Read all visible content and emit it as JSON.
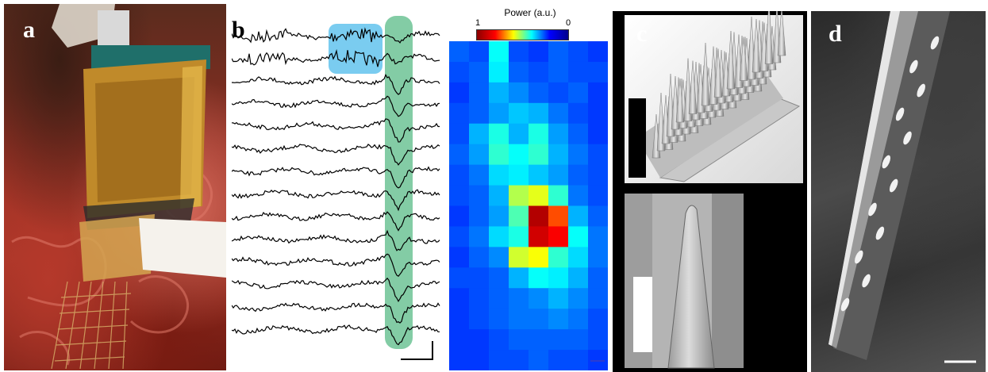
{
  "figure": {
    "panel_labels": {
      "a": "a",
      "b": "b",
      "c": "c",
      "d": "d"
    },
    "heatmap": {
      "colorbar_title": "Power (a.u.)",
      "colorbar_min_label": "1",
      "colorbar_max_label": "0",
      "colormap": [
        "#8b0000",
        "#ff0000",
        "#ffff00",
        "#00ffff",
        "#0000ff",
        "#00008b"
      ],
      "rows": 16,
      "cols": 8,
      "values": [
        [
          0.22,
          0.2,
          0.38,
          0.2,
          0.18,
          0.22,
          0.2,
          0.18
        ],
        [
          0.2,
          0.22,
          0.36,
          0.22,
          0.2,
          0.22,
          0.2,
          0.2
        ],
        [
          0.18,
          0.22,
          0.3,
          0.26,
          0.22,
          0.2,
          0.22,
          0.18
        ],
        [
          0.2,
          0.22,
          0.28,
          0.32,
          0.3,
          0.24,
          0.2,
          0.18
        ],
        [
          0.2,
          0.3,
          0.4,
          0.3,
          0.4,
          0.28,
          0.22,
          0.18
        ],
        [
          0.22,
          0.28,
          0.42,
          0.38,
          0.42,
          0.3,
          0.24,
          0.2
        ],
        [
          0.2,
          0.24,
          0.34,
          0.36,
          0.32,
          0.28,
          0.22,
          0.2
        ],
        [
          0.2,
          0.22,
          0.3,
          0.55,
          0.6,
          0.42,
          0.24,
          0.2
        ],
        [
          0.18,
          0.22,
          0.28,
          0.45,
          0.95,
          0.8,
          0.3,
          0.22
        ],
        [
          0.2,
          0.24,
          0.34,
          0.4,
          0.92,
          0.88,
          0.38,
          0.24
        ],
        [
          0.18,
          0.22,
          0.26,
          0.58,
          0.62,
          0.42,
          0.34,
          0.24
        ],
        [
          0.2,
          0.2,
          0.22,
          0.3,
          0.38,
          0.36,
          0.3,
          0.22
        ],
        [
          0.18,
          0.2,
          0.22,
          0.24,
          0.26,
          0.3,
          0.26,
          0.22
        ],
        [
          0.18,
          0.2,
          0.22,
          0.24,
          0.24,
          0.26,
          0.24,
          0.2
        ],
        [
          0.18,
          0.18,
          0.2,
          0.22,
          0.22,
          0.22,
          0.22,
          0.2
        ],
        [
          0.18,
          0.18,
          0.2,
          0.2,
          0.22,
          0.2,
          0.2,
          0.18
        ]
      ]
    },
    "traces": {
      "count": 14
    },
    "highlight_colors": {
      "blue": "#6cc6ee",
      "green": "#76c79b"
    },
    "scale_bar_color": "#2b3bd1"
  }
}
